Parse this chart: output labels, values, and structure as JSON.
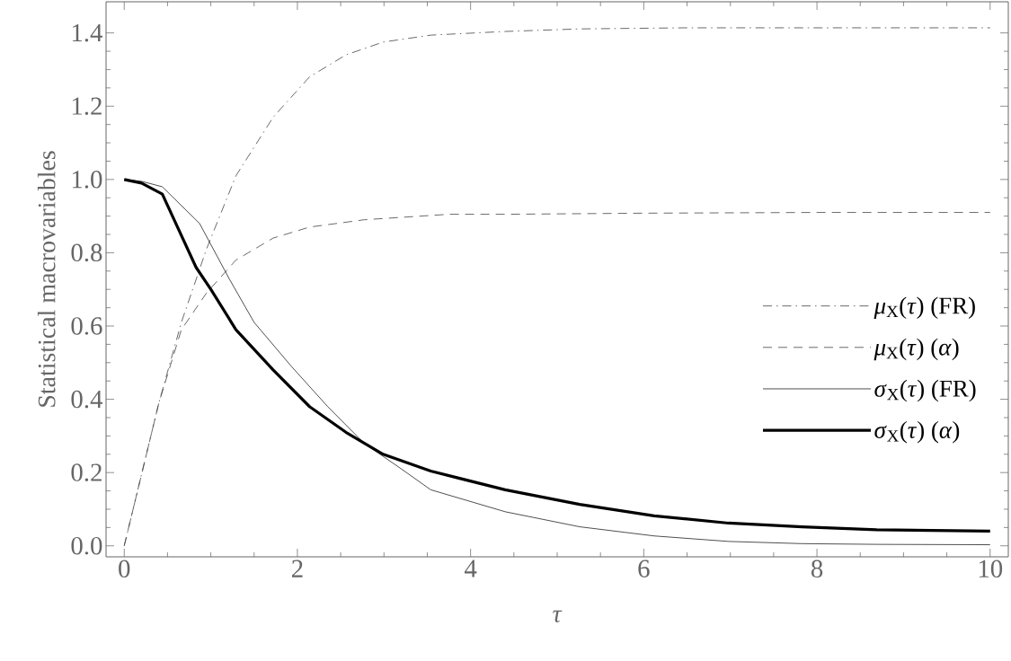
{
  "chart_data": {
    "type": "line",
    "xlabel": "*τ*",
    "ylabel": "Statistical macrovariables",
    "xlim": [
      -0.21,
      10.21
    ],
    "ylim": [
      -0.03,
      1.485
    ],
    "xticks": [
      0,
      2,
      4,
      6,
      8,
      10
    ],
    "yticks": [
      {
        "value": 0,
        "label": "0.0"
      },
      {
        "value": 0.2,
        "label": "0.2"
      },
      {
        "value": 0.4,
        "label": "0.4"
      },
      {
        "value": 0.6,
        "label": "0.6"
      },
      {
        "value": 0.8,
        "label": "0.8"
      },
      {
        "value": 1.0,
        "label": "1.0"
      },
      {
        "value": 1.2,
        "label": "1.2"
      },
      {
        "value": 1.4,
        "label": "1.4"
      }
    ],
    "legend": "right",
    "series": [
      {
        "name": "*μ*$_{X}$(*τ*) (FR)",
        "color": "#444444",
        "line_style": "dashdot",
        "x": [
          0,
          0.4,
          0.66,
          0.95,
          1.29,
          1.72,
          2.14,
          2.56,
          2.99,
          3.54,
          4.4,
          5.26,
          6.5,
          10
        ],
        "values": [
          0,
          0.39,
          0.61,
          0.81,
          1.01,
          1.17,
          1.28,
          1.34,
          1.375,
          1.394,
          1.404,
          1.411,
          1.414,
          1.414
        ]
      },
      {
        "name": "*μ*$_{X}$(*τ*) (*α*)",
        "color": "#444444",
        "line_style": "dashed",
        "x": [
          0,
          0.4,
          0.66,
          0.95,
          1.29,
          1.72,
          2.14,
          2.77,
          3.75,
          4.4,
          6,
          8,
          10
        ],
        "values": [
          0,
          0.39,
          0.59,
          0.69,
          0.78,
          0.84,
          0.87,
          0.89,
          0.905,
          0.905,
          0.908,
          0.91,
          0.91
        ]
      },
      {
        "name": "*σ*$_{X}$(*τ*) (FR)",
        "color": "#222222",
        "line_style": "solid",
        "x": [
          0,
          0.2,
          0.44,
          0.87,
          1.21,
          1.5,
          1.93,
          2.35,
          2.77,
          3.2,
          3.54,
          4.4,
          5.26,
          6.12,
          6.98,
          7.83,
          8.7,
          10
        ],
        "values": [
          1,
          0.995,
          0.98,
          0.88,
          0.73,
          0.61,
          0.49,
          0.38,
          0.28,
          0.21,
          0.153,
          0.093,
          0.052,
          0.027,
          0.012,
          0.006,
          0.004,
          0.003
        ]
      },
      {
        "name": "*σ*$_{X}$(*τ*) (*α*)",
        "color": "#000000",
        "line_style": "solid",
        "x": [
          0,
          0.2,
          0.44,
          0.83,
          1.0,
          1.29,
          1.72,
          2.14,
          2.56,
          2.99,
          3.54,
          4.4,
          5.26,
          6.12,
          6.98,
          7.83,
          8.69,
          10
        ],
        "values": [
          1,
          0.99,
          0.96,
          0.76,
          0.7,
          0.59,
          0.48,
          0.38,
          0.31,
          0.25,
          0.204,
          0.153,
          0.113,
          0.082,
          0.062,
          0.052,
          0.044,
          0.04
        ]
      }
    ]
  }
}
